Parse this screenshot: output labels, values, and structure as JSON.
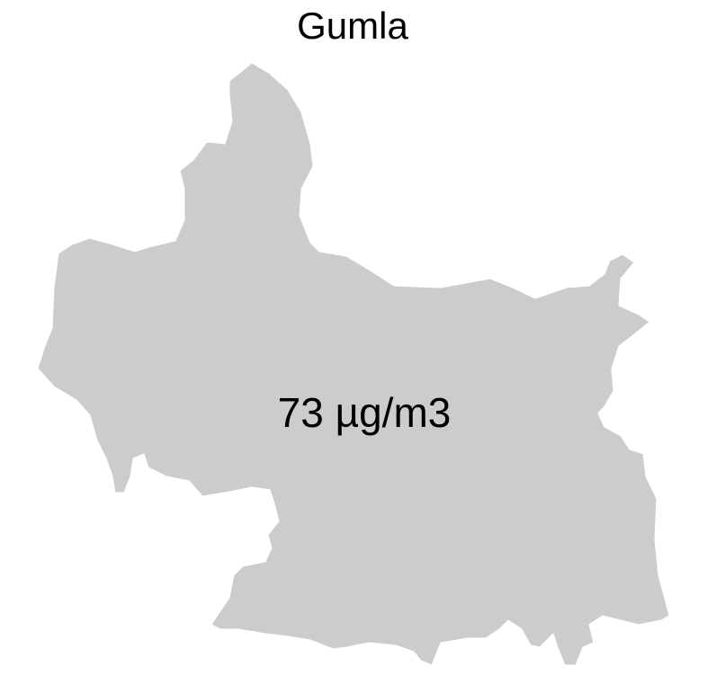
{
  "title": "Gumla",
  "label": "73 µg/m3"
}
